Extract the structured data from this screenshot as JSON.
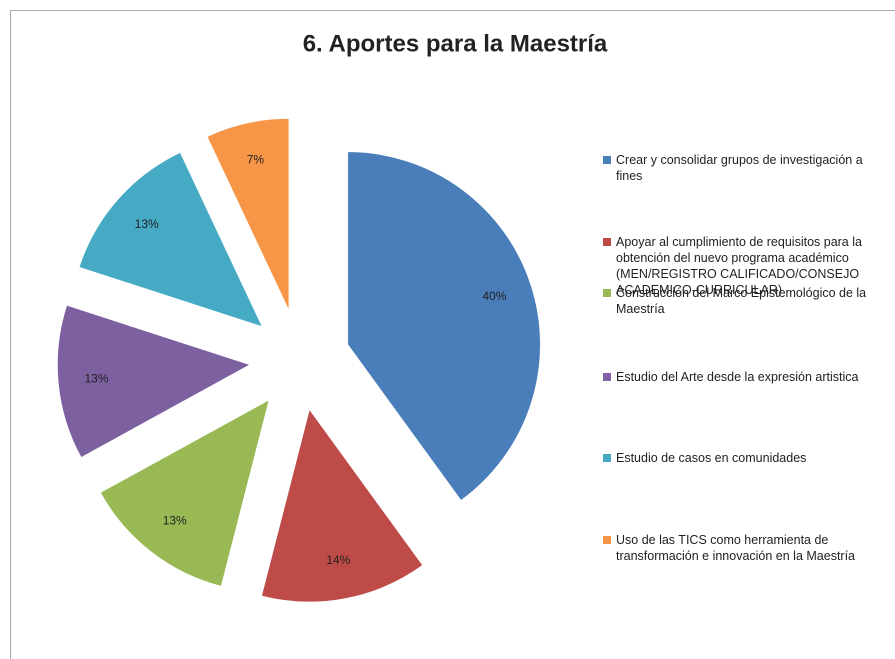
{
  "chart_data": {
    "type": "pie",
    "title": "6. Aportes para la Maestría",
    "categories": [
      "Crear y consolidar grupos de investigación a fines",
      "Apoyar al cumplimiento  de requisitos para la obtención del nuevo programa académico (MEN/REGISTRO  CALIFICADO/CONSEJO ACADEMICO-CURRICULAR)",
      "Construcción del Marco Epistemológico de la Maestría",
      "Estudio del Arte desde la expresión artistica",
      "Estudio de casos en comunidades",
      "Uso de las TICS como herramienta de transformación e innovación en la Maestría"
    ],
    "values": [
      40,
      14,
      13,
      13,
      13,
      7
    ],
    "value_labels": [
      "40%",
      "14%",
      "13%",
      "13%",
      "13%",
      "7%"
    ],
    "colors": [
      "#4a7ebb",
      "#be4b48",
      "#98b954",
      "#7d60a0",
      "#46aac5",
      "#f79646"
    ],
    "legend": "right"
  }
}
